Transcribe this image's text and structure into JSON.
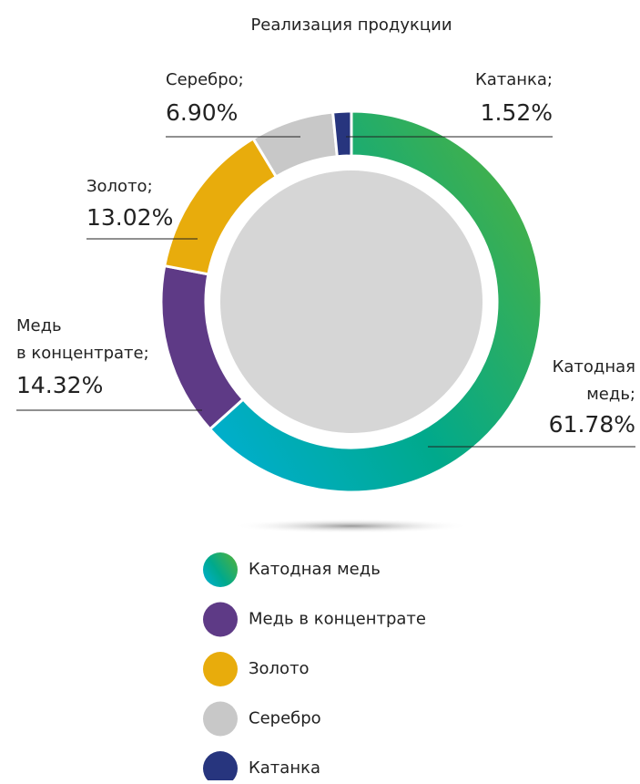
{
  "chart_data": {
    "type": "donut",
    "title": "Реализация продукции",
    "categories": [
      "Катодная медь",
      "Медь в концентрате",
      "Золото",
      "Серебро",
      "Катанка"
    ],
    "values": [
      61.78,
      14.32,
      13.02,
      6.9,
      1.52
    ],
    "value_labels": [
      "61.78%",
      "14.32%",
      "13.02%",
      "6.90%",
      "1.52%"
    ],
    "callout_labels": [
      [
        "Катодная",
        "медь;"
      ],
      [
        "Медь",
        "в концентрате;"
      ],
      [
        "Золото;"
      ],
      [
        "Серебро;"
      ],
      [
        "Катанка;"
      ]
    ],
    "colors": [
      "#1bab9e",
      "#5e3a86",
      "#e8ac0c",
      "#c8c8c8",
      "#27357e"
    ],
    "gradient": [
      "#00afd8",
      "#00a98c",
      "#43b04a"
    ]
  }
}
